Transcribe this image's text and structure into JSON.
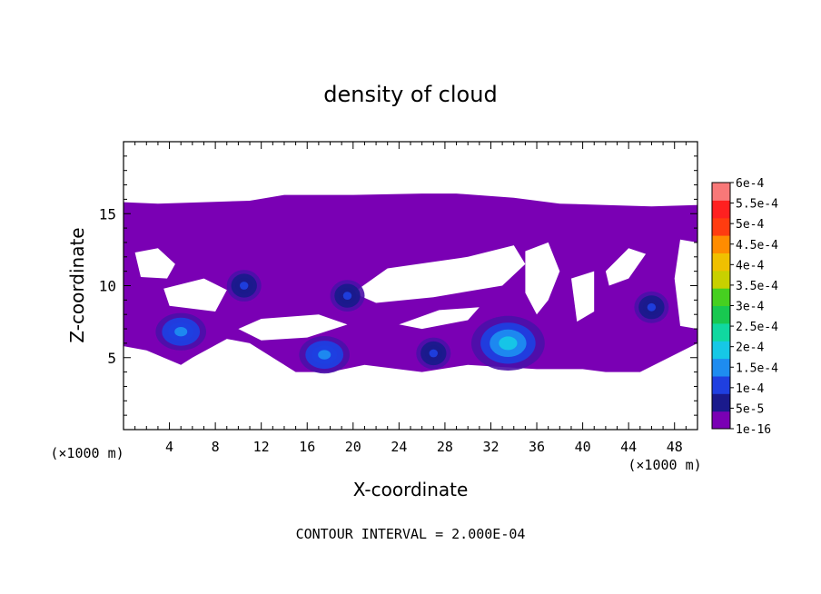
{
  "chart_data": {
    "type": "heatmap",
    "title": "density of cloud",
    "xlabel": "X-coordinate",
    "ylabel": "Z-coordinate",
    "x_unit_label": "(×1000 m)",
    "z_unit_label": "(×1000 m)",
    "xlim": [
      0,
      50
    ],
    "ylim": [
      0,
      20
    ],
    "x_ticks": [
      4,
      8,
      12,
      16,
      20,
      24,
      28,
      32,
      36,
      40,
      44,
      48
    ],
    "y_ticks": [
      5,
      10,
      15
    ],
    "contour_interval_text": "CONTOUR INTERVAL = 2.000E-04",
    "colorbar": {
      "labels": [
        "1e-16",
        "5e-5",
        "1e-4",
        "1.5e-4",
        "2e-4",
        "2.5e-4",
        "3e-4",
        "3.5e-4",
        "4e-4",
        "4.5e-4",
        "5e-4",
        "5.5e-4",
        "6e-4"
      ],
      "colors": [
        "#7a00b4",
        "#1a1a8c",
        "#1f3fe0",
        "#1e8cf0",
        "#16c8e6",
        "#10d8a0",
        "#18c850",
        "#46d020",
        "#c8d000",
        "#f0c000",
        "#ff8c00",
        "#ff3c10",
        "#ff2020",
        "#f87878"
      ]
    },
    "cloud_layer": {
      "base_z": 4.5,
      "top_z": 16.0,
      "color": "#7a00b4"
    },
    "high_density_cores": [
      {
        "x": 17.5,
        "z": 5.2,
        "value": 0.0001
      },
      {
        "x": 19.5,
        "z": 9.3,
        "value": 5e-05
      },
      {
        "x": 5.0,
        "z": 6.8,
        "value": 0.0001
      },
      {
        "x": 33.5,
        "z": 6.0,
        "value": 0.00015
      },
      {
        "x": 46.0,
        "z": 8.5,
        "value": 5e-05
      },
      {
        "x": 10.5,
        "z": 10.0,
        "value": 5e-05
      },
      {
        "x": 27.0,
        "z": 5.3,
        "value": 5e-05
      }
    ]
  }
}
